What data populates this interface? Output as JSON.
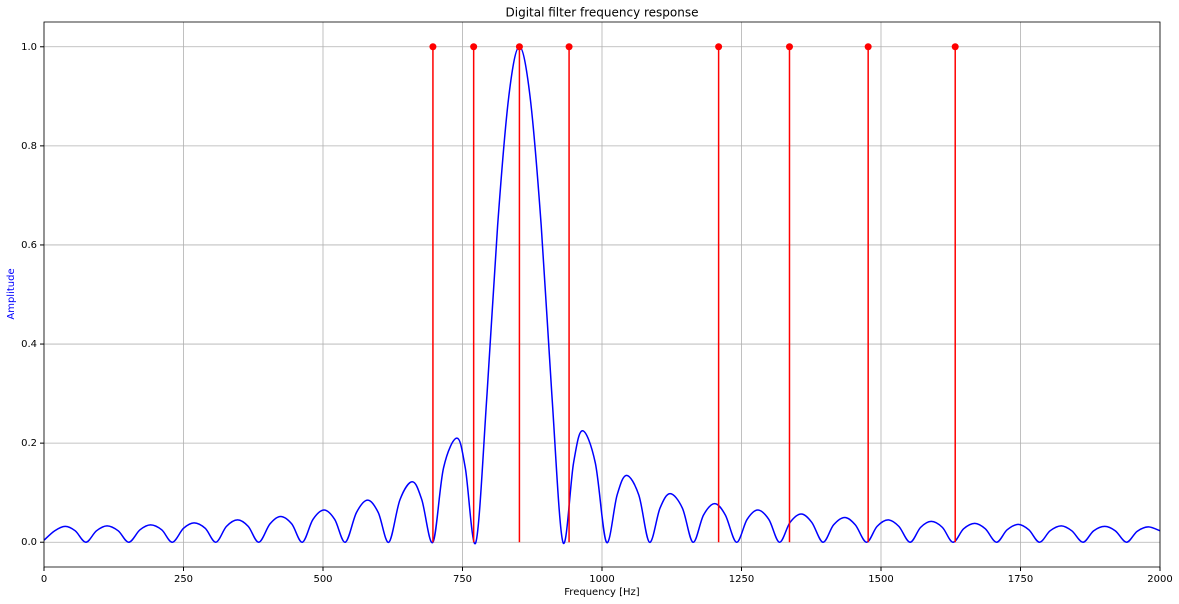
{
  "chart_data": {
    "type": "line",
    "title": "Digital filter frequency response",
    "x_label": "Frequency [Hz]",
    "y_label": "Amplitude",
    "y_label_color": "#0000ff",
    "xlim": [
      0,
      2000
    ],
    "ylim": [
      -0.05,
      1.05
    ],
    "xticks": [
      0,
      250,
      500,
      750,
      1000,
      1250,
      1500,
      1750,
      2000
    ],
    "yticks": [
      {
        "value": 0,
        "label": "0.0"
      },
      {
        "value": 0.2,
        "label": "0.2"
      },
      {
        "value": 0.4,
        "label": "0.4"
      },
      {
        "value": 0.6,
        "label": "0.6"
      },
      {
        "value": 0.8,
        "label": "0.8"
      },
      {
        "value": 1,
        "label": "1.0"
      }
    ],
    "grid": true,
    "x": [
      0,
      19,
      38,
      56,
      75,
      94,
      113,
      133,
      152,
      172,
      191,
      211,
      230,
      250,
      269,
      289,
      308,
      327,
      347,
      366,
      385,
      405,
      424,
      444,
      463,
      482,
      502,
      521,
      540,
      560,
      580,
      599,
      618,
      638,
      660,
      677,
      697,
      716,
      740,
      755,
      774,
      794,
      813,
      833,
      852,
      871,
      891,
      910,
      930,
      949,
      965,
      988,
      1008,
      1027,
      1044,
      1066,
      1085,
      1104,
      1122,
      1144,
      1163,
      1182,
      1202,
      1221,
      1241,
      1260,
      1279,
      1299,
      1318,
      1337,
      1357,
      1376,
      1396,
      1415,
      1435,
      1454,
      1474,
      1493,
      1513,
      1532,
      1552,
      1571,
      1590,
      1610,
      1629,
      1648,
      1668,
      1687,
      1707,
      1726,
      1746,
      1765,
      1784,
      1803,
      1823,
      1842,
      1862,
      1881,
      1901,
      1920,
      1940,
      1959,
      1979,
      2000
    ],
    "series": [
      {
        "color": "#0000ff",
        "values": [
          0.004,
          0.023,
          0.032,
          0.023,
          0,
          0.023,
          0.033,
          0.023,
          0,
          0.025,
          0.035,
          0.025,
          0,
          0.028,
          0.039,
          0.028,
          0,
          0.032,
          0.045,
          0.032,
          0,
          0.037,
          0.052,
          0.037,
          0,
          0.046,
          0.065,
          0.046,
          0,
          0.06,
          0.085,
          0.06,
          0,
          0.086,
          0.122,
          0.086,
          0,
          0.15,
          0.21,
          0.15,
          0,
          0.3,
          0.64,
          0.9,
          1,
          0.9,
          0.64,
          0.3,
          0,
          0.16,
          0.225,
          0.16,
          0,
          0.095,
          0.135,
          0.095,
          0,
          0.069,
          0.098,
          0.069,
          0,
          0.055,
          0.078,
          0.055,
          0,
          0.046,
          0.065,
          0.046,
          0,
          0.04,
          0.057,
          0.04,
          0,
          0.035,
          0.05,
          0.035,
          0,
          0.032,
          0.045,
          0.032,
          0,
          0.03,
          0.042,
          0.03,
          0,
          0.027,
          0.038,
          0.027,
          0,
          0.025,
          0.036,
          0.025,
          0,
          0.023,
          0.033,
          0.023,
          0,
          0.023,
          0.032,
          0.023,
          0,
          0.022,
          0.031,
          0.023
        ]
      }
    ],
    "stems": {
      "color": "#ff0000",
      "x": [
        697,
        770,
        852,
        941,
        1209,
        1336,
        1477,
        1633
      ],
      "values": [
        1,
        1,
        1,
        1,
        1,
        1,
        1,
        1
      ]
    }
  }
}
